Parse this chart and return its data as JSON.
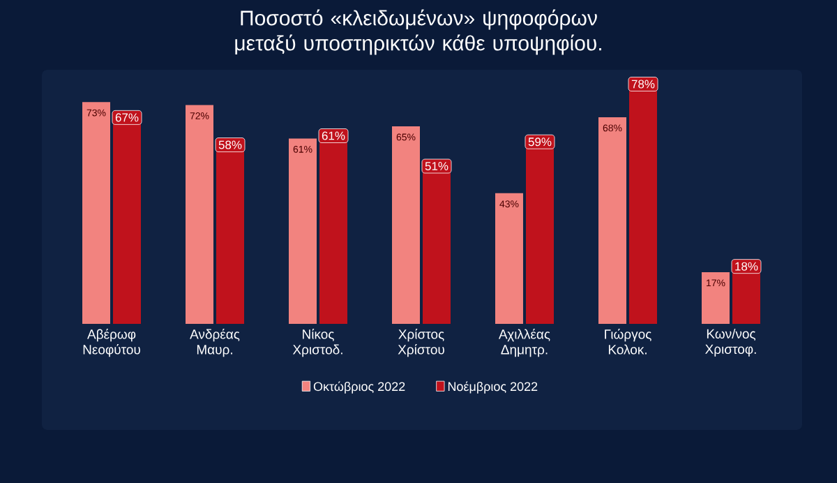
{
  "chart_data": {
    "type": "bar",
    "title": "Ποσοστό «κλειδωμένων» ψηφοφόρων μεταξύ υποστηρικτών κάθε υποψηφίου.",
    "categories": [
      "Αβέρωφ Νεοφύτου",
      "Ανδρέας Μαυρ.",
      "Νίκος Χριστοδ.",
      "Χρίστος Χρίστου",
      "Αχιλλέας Δημητρ.",
      "Γιώργος Κολοκ.",
      "Κων/νος Χριστοφ."
    ],
    "series": [
      {
        "name": "Οκτώβριος 2022",
        "color": "#f2837f",
        "values": [
          73,
          72,
          61,
          65,
          43,
          68,
          17
        ],
        "value_labels": [
          "73%",
          "72%",
          "61%",
          "65%",
          "43%",
          "68%",
          "17%"
        ]
      },
      {
        "name": "Νοέμβριος 2022",
        "color": "#c0121c",
        "values": [
          67,
          58,
          61,
          51,
          59,
          78,
          18
        ],
        "value_labels": [
          "67%",
          "58%",
          "61%",
          "51%",
          "59%",
          "78%",
          "18%"
        ]
      }
    ],
    "ylim": [
      0,
      85
    ],
    "legend": "bottom"
  }
}
